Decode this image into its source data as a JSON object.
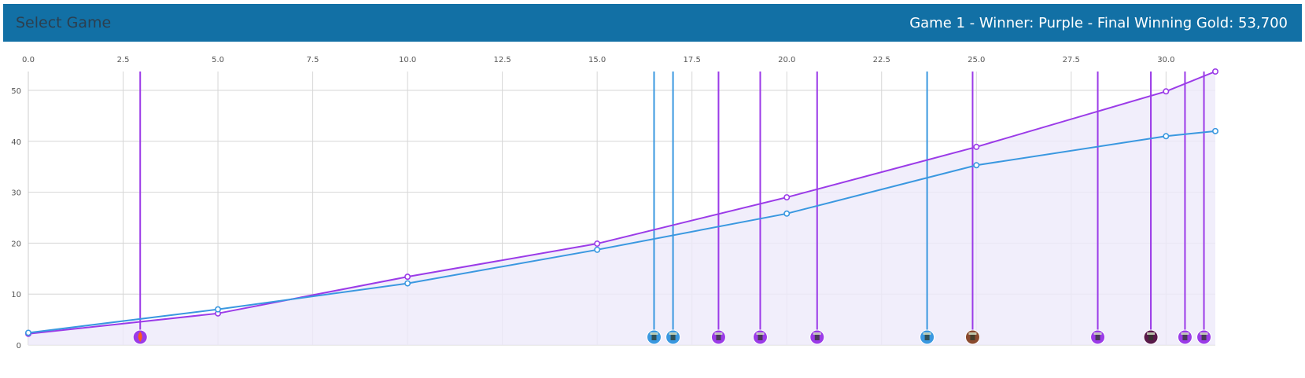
{
  "header": {
    "select_label": "Select Game",
    "game_title": "Game 1 - Winner: Purple - Final Winning Gold: 53,700"
  },
  "colors": {
    "header_bg": "#1270a5",
    "purple": "#9b3be8",
    "blue": "#3a98e0",
    "area_fill": "#eeeafa",
    "grid": "#d6d6d6",
    "tick_text": "#555555"
  },
  "chart_data": {
    "type": "line",
    "title": "",
    "xlabel": "",
    "ylabel": "",
    "xlim": [
      0,
      31.3
    ],
    "ylim": [
      0,
      53.7
    ],
    "x_ticks": [
      "0.0",
      "2.5",
      "5.0",
      "7.5",
      "10.0",
      "12.5",
      "15.0",
      "17.5",
      "20.0",
      "22.5",
      "25.0",
      "27.5",
      "30.0"
    ],
    "x_tick_values": [
      0,
      2.5,
      5,
      7.5,
      10,
      12.5,
      15,
      17.5,
      20,
      22.5,
      25,
      27.5,
      30
    ],
    "y_ticks": [
      "0",
      "10",
      "20",
      "30",
      "40",
      "50"
    ],
    "y_tick_values": [
      0,
      10,
      20,
      30,
      40,
      50
    ],
    "grid": true,
    "x_axis_position": "top",
    "series": [
      {
        "color": "#9b3be8",
        "x": [
          0,
          5,
          10,
          15,
          20,
          25,
          30,
          31.3
        ],
        "values": [
          2.2,
          6.2,
          13.4,
          19.9,
          29.0,
          38.9,
          49.8,
          53.7
        ]
      },
      {
        "color": "#3a98e0",
        "x": [
          0,
          5,
          10,
          15,
          20,
          25,
          30,
          31.3
        ],
        "values": [
          2.4,
          7.0,
          12.1,
          18.7,
          25.8,
          35.3,
          41.0,
          42.0
        ]
      }
    ],
    "events": [
      {
        "x": 2.95,
        "team": "purple",
        "icon": "fire-dragon-icon"
      },
      {
        "x": 16.5,
        "team": "blue",
        "icon": "tower-icon"
      },
      {
        "x": 17.0,
        "team": "blue",
        "icon": "tower-icon"
      },
      {
        "x": 18.2,
        "team": "purple",
        "icon": "tower-icon"
      },
      {
        "x": 19.3,
        "team": "purple",
        "icon": "tower-icon"
      },
      {
        "x": 20.8,
        "team": "purple",
        "icon": "tower-icon"
      },
      {
        "x": 23.7,
        "team": "blue",
        "icon": "tower-icon"
      },
      {
        "x": 24.9,
        "team": "purple",
        "icon": "baron-icon"
      },
      {
        "x": 28.2,
        "team": "purple",
        "icon": "tower-icon"
      },
      {
        "x": 29.6,
        "team": "purple",
        "icon": "elder-dragon-icon"
      },
      {
        "x": 30.5,
        "team": "purple",
        "icon": "tower-icon"
      },
      {
        "x": 31.0,
        "team": "purple",
        "icon": "tower-icon"
      }
    ]
  }
}
